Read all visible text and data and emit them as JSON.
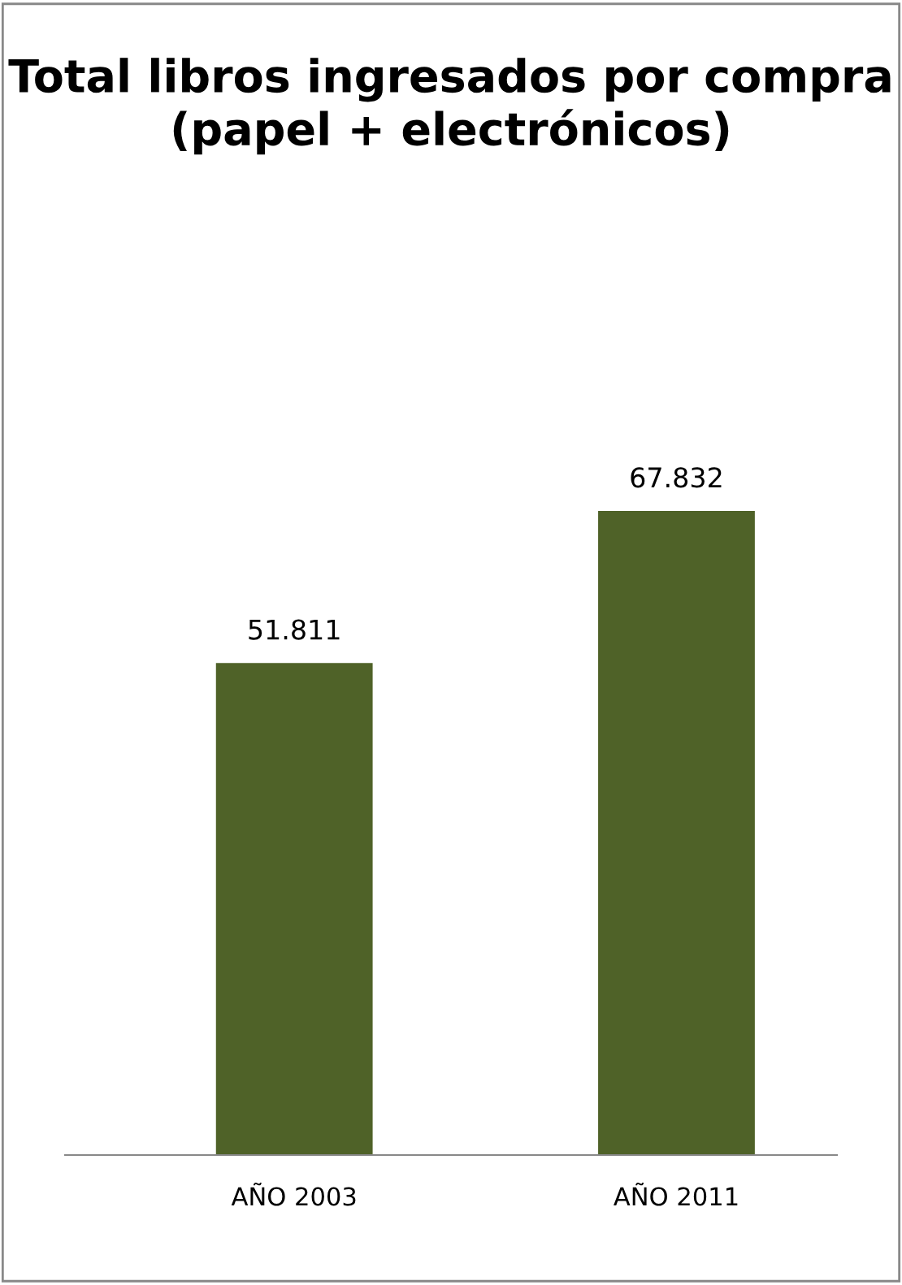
{
  "chart_data": {
    "type": "bar",
    "title": "Total libros ingresados por compra (papel + electrónicos)",
    "categories": [
      "AÑO 2003",
      "AÑO 2011"
    ],
    "values": [
      51811,
      67832
    ],
    "value_labels": [
      "51.811",
      "67.832"
    ],
    "color": "#4f6228",
    "grid": false,
    "legend": false
  }
}
